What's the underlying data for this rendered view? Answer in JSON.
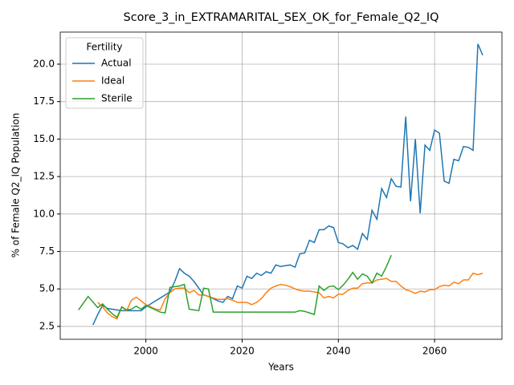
{
  "chart_data": {
    "type": "line",
    "title": "Score_3_in_EXTRAMARITAL_SEX_OK_for_Female_Q2_IQ",
    "xlabel": "Years",
    "ylabel": "% of Female Q2_IQ Population",
    "legend_title": "Fertility",
    "legend_loc": "upper left",
    "grid": true,
    "xlim": [
      1982.2,
      2074.0
    ],
    "xticks": [
      2000,
      2020,
      2040,
      2060
    ],
    "ylim": [
      1.64,
      22.14
    ],
    "yticks": [
      2.5,
      {
        "value": 5,
        "label": "5.0"
      },
      7.5,
      {
        "value": 10,
        "label": "10.0"
      },
      12.5,
      {
        "value": 15,
        "label": "15.0"
      },
      17.5,
      {
        "value": 20,
        "label": "20.0"
      }
    ],
    "series": [
      {
        "name": "Actual",
        "color": "#1f77b4",
        "x": [
          1989,
          1990,
          1991,
          1992,
          1993,
          1994,
          1995,
          1996,
          1997,
          1998,
          1999,
          2000,
          2001,
          2002,
          2003,
          2004,
          2005,
          2006,
          2007,
          2008,
          2009,
          2010,
          2011,
          2012,
          2013,
          2014,
          2015,
          2016,
          2017,
          2018,
          2019,
          2020,
          2021,
          2022,
          2023,
          2024,
          2025,
          2026,
          2027,
          2028,
          2029,
          2030,
          2031,
          2032,
          2033,
          2034,
          2035,
          2036,
          2037,
          2038,
          2039,
          2040,
          2041,
          2042,
          2043,
          2044,
          2045,
          2046,
          2047,
          2048,
          2049,
          2050,
          2051,
          2052,
          2053,
          2054,
          2055,
          2056,
          2057,
          2058,
          2059,
          2060,
          2061,
          2062,
          2063,
          2064,
          2065,
          2066,
          2067,
          2068,
          2069,
          2070
        ],
        "values": [
          2.6,
          3.3,
          3.9,
          3.7,
          3.65,
          3.6,
          3.55,
          3.55,
          3.55,
          3.55,
          3.55,
          3.8,
          4.0,
          4.2,
          4.4,
          4.6,
          4.8,
          5.5,
          6.35,
          6.05,
          5.85,
          5.5,
          5.05,
          4.6,
          4.5,
          4.35,
          4.2,
          4.1,
          4.5,
          4.35,
          5.2,
          5.05,
          5.85,
          5.7,
          6.05,
          5.9,
          6.15,
          6.05,
          6.6,
          6.5,
          6.55,
          6.6,
          6.45,
          7.35,
          7.4,
          8.25,
          8.1,
          8.95,
          8.95,
          9.2,
          9.1,
          8.1,
          8.0,
          7.75,
          7.9,
          7.65,
          8.7,
          8.3,
          10.25,
          9.65,
          11.7,
          11.1,
          12.35,
          11.85,
          11.8,
          16.5,
          10.85,
          15.0,
          10.05,
          14.6,
          14.25,
          15.6,
          15.4,
          12.2,
          12.05,
          13.65,
          13.55,
          14.5,
          14.45,
          14.25,
          21.35,
          20.6
        ]
      },
      {
        "name": "Ideal",
        "color": "#ff7f0e",
        "x": [
          1990,
          1991,
          1992,
          1993,
          1994,
          1995,
          1996,
          1997,
          1998,
          1999,
          2000,
          2001,
          2002,
          2003,
          2004,
          2005,
          2006,
          2007,
          2008,
          2009,
          2010,
          2011,
          2012,
          2013,
          2014,
          2015,
          2016,
          2017,
          2018,
          2019,
          2020,
          2021,
          2022,
          2023,
          2024,
          2025,
          2026,
          2027,
          2028,
          2029,
          2030,
          2031,
          2032,
          2033,
          2034,
          2035,
          2036,
          2037,
          2038,
          2039,
          2040,
          2041,
          2042,
          2043,
          2044,
          2045,
          2046,
          2047,
          2048,
          2049,
          2050,
          2051,
          2052,
          2053,
          2054,
          2055,
          2056,
          2057,
          2058,
          2059,
          2060,
          2061,
          2062,
          2063,
          2064,
          2065,
          2066,
          2067,
          2068,
          2069,
          2070
        ],
        "values": [
          4.1,
          3.8,
          3.4,
          3.15,
          3.0,
          3.8,
          3.55,
          4.25,
          4.45,
          4.2,
          3.95,
          3.8,
          3.65,
          3.6,
          4.35,
          4.75,
          5.0,
          5.05,
          5.05,
          4.75,
          4.9,
          4.6,
          4.6,
          4.5,
          4.4,
          4.3,
          4.3,
          4.35,
          4.25,
          4.1,
          4.1,
          4.1,
          3.95,
          4.1,
          4.35,
          4.75,
          5.05,
          5.2,
          5.3,
          5.25,
          5.15,
          5.0,
          4.9,
          4.85,
          4.85,
          4.8,
          4.75,
          4.4,
          4.5,
          4.4,
          4.65,
          4.65,
          4.9,
          5.05,
          5.05,
          5.35,
          5.4,
          5.4,
          5.6,
          5.65,
          5.7,
          5.5,
          5.5,
          5.2,
          4.95,
          4.85,
          4.7,
          4.85,
          4.8,
          4.95,
          4.95,
          5.15,
          5.25,
          5.2,
          5.45,
          5.35,
          5.6,
          5.6,
          6.05,
          5.95,
          6.05
        ]
      },
      {
        "name": "Sterile",
        "color": "#2ca02c",
        "x": [
          1986,
          1988,
          1990,
          1991,
          1992,
          1993,
          1994,
          1995,
          1996,
          1997,
          1998,
          1999,
          2000,
          2001,
          2002,
          2003,
          2004,
          2005,
          2006,
          2007,
          2008,
          2009,
          2010,
          2011,
          2012,
          2013,
          2014,
          2015,
          2016,
          2017,
          2018,
          2019,
          2020,
          2021,
          2022,
          2023,
          2024,
          2025,
          2026,
          2027,
          2028,
          2029,
          2030,
          2031,
          2032,
          2033,
          2034,
          2035,
          2036,
          2037,
          2038,
          2039,
          2040,
          2041,
          2042,
          2043,
          2044,
          2045,
          2046,
          2047,
          2048,
          2049,
          2050,
          2051
        ],
        "values": [
          3.6,
          4.5,
          3.75,
          4.0,
          3.65,
          3.35,
          3.1,
          3.8,
          3.6,
          3.65,
          3.85,
          3.65,
          3.9,
          3.75,
          3.6,
          3.45,
          3.4,
          5.1,
          5.15,
          5.2,
          5.3,
          3.65,
          3.6,
          3.55,
          5.05,
          5.0,
          3.45,
          3.45,
          3.45,
          3.45,
          3.45,
          3.45,
          3.45,
          3.45,
          3.45,
          3.45,
          3.45,
          3.45,
          3.45,
          3.45,
          3.45,
          3.45,
          3.45,
          3.45,
          3.55,
          3.5,
          3.4,
          3.3,
          5.2,
          4.9,
          5.15,
          5.2,
          4.95,
          5.25,
          5.65,
          6.1,
          5.65,
          6.0,
          5.85,
          5.4,
          6.05,
          5.85,
          6.5,
          7.25
        ]
      }
    ]
  }
}
